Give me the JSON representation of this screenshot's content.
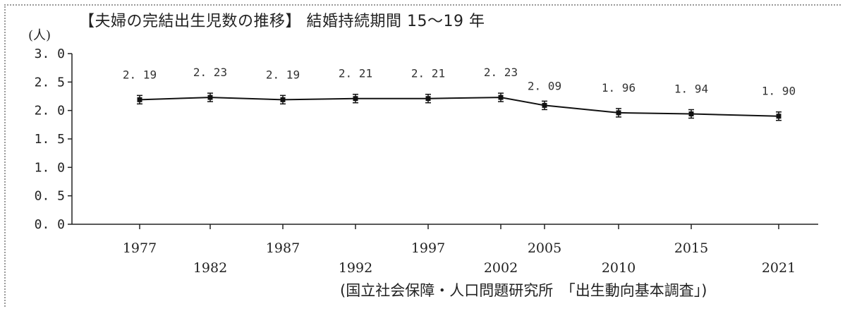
{
  "title": "【夫婦の完結出生児数の推移】 結婚持続期間 15〜19 年",
  "unit_label": "(人)",
  "source": "(国立社会保障・人口問題研究所　「出生動向基本調査」)",
  "chart_data": {
    "type": "line",
    "categories": [
      "1977",
      "1982",
      "1987",
      "1992",
      "1997",
      "2002",
      "2005",
      "2010",
      "2015",
      "2021"
    ],
    "values": [
      2.19,
      2.23,
      2.19,
      2.21,
      2.21,
      2.23,
      2.09,
      1.96,
      1.94,
      1.9
    ],
    "value_labels": [
      "2. 19",
      "2. 23",
      "2. 19",
      "2. 21",
      "2. 21",
      "2. 23",
      "2. 09",
      "1. 96",
      "1. 94",
      "1. 90"
    ],
    "y_tick_labels": [
      "0. 0",
      "0. 5",
      "1. 0",
      "1. 5",
      "2. 0",
      "2. 5",
      "3. 0"
    ],
    "ylim": [
      0,
      3.0
    ],
    "ylabel": "(人)",
    "xlabel": "",
    "grid": false,
    "legend": "none",
    "line_color": "#111111"
  }
}
